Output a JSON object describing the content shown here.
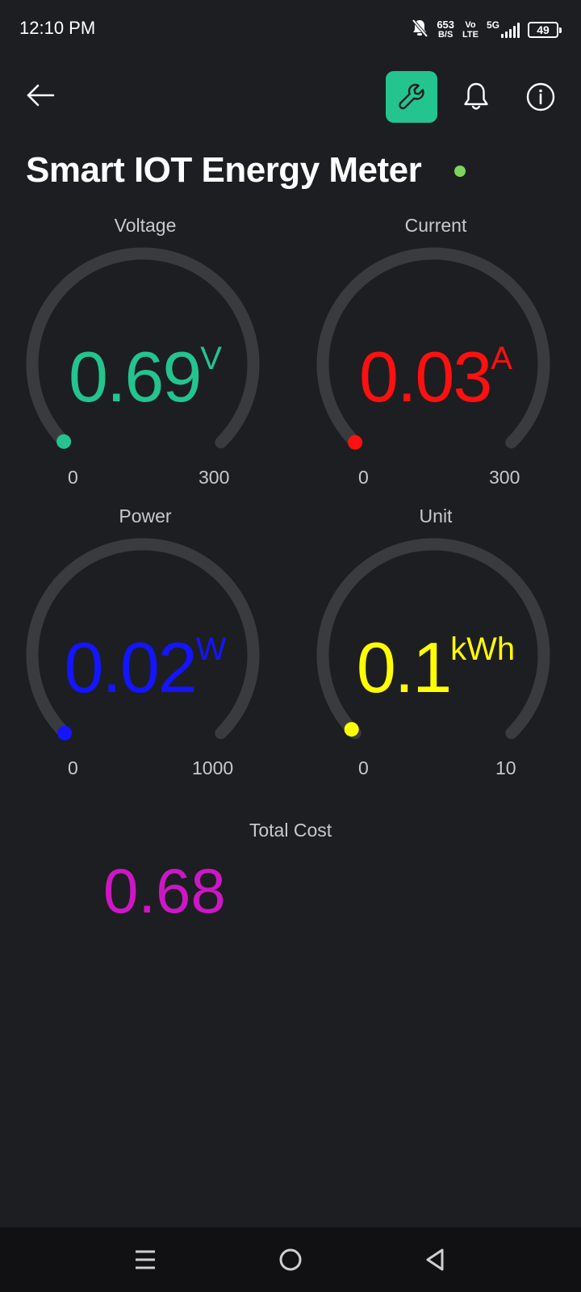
{
  "status_bar": {
    "time": "12:10 PM",
    "net_speed_value": "653",
    "net_speed_unit": "B/S",
    "volte_top": "Vo",
    "volte_bottom": "LTE",
    "network_type": "5G",
    "battery_level": "49"
  },
  "toolbar": {
    "back_icon": "arrow-left-icon",
    "settings_icon": "wrench-icon",
    "settings_bg_color": "#23c48e",
    "notifications_icon": "bell-icon",
    "info_icon": "info-icon"
  },
  "device": {
    "name": "Smart IOT Energy Meter",
    "status_color": "#7fd35c"
  },
  "gauges": [
    {
      "label": "Voltage",
      "value": "0.69",
      "unit": "V",
      "min": "0",
      "max": "300",
      "color": "#23c48e"
    },
    {
      "label": "Current",
      "value": "0.03",
      "unit": "A",
      "min": "0",
      "max": "300",
      "color": "#ff1010"
    },
    {
      "label": "Power",
      "value": "0.02",
      "unit": "W",
      "min": "0",
      "max": "1000",
      "color": "#1414ff"
    },
    {
      "label": "Unit",
      "value": "0.1",
      "unit": "kWh",
      "min": "0",
      "max": "10",
      "color": "#ffff00"
    }
  ],
  "total_cost": {
    "label": "Total Cost",
    "value": "0.68",
    "color": "#cc17c6"
  },
  "nav_bar": {
    "menu_icon": "menu-icon",
    "home_icon": "home-circle-icon",
    "back_icon": "back-triangle-icon"
  }
}
